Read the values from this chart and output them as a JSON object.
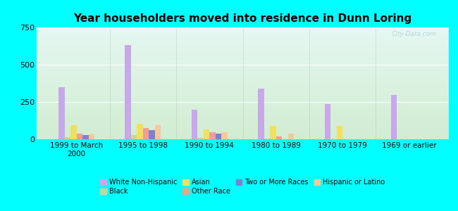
{
  "title": "Year householders moved into residence in Dunn Loring",
  "categories": [
    "1999 to March\n2000",
    "1995 to 1998",
    "1990 to 1994",
    "1980 to 1989",
    "1970 to 1979",
    "1969 or earlier"
  ],
  "series_order": [
    "White Non-Hispanic",
    "Black",
    "Asian",
    "Other Race",
    "Two or More Races",
    "Hispanic or Latino"
  ],
  "series": {
    "White Non-Hispanic": [
      350,
      630,
      200,
      340,
      235,
      295
    ],
    "Black": [
      15,
      30,
      8,
      5,
      0,
      0
    ],
    "Asian": [
      95,
      105,
      65,
      90,
      90,
      0
    ],
    "Other Race": [
      40,
      75,
      45,
      18,
      0,
      0
    ],
    "Two or More Races": [
      28,
      62,
      38,
      0,
      0,
      0
    ],
    "Hispanic or Latino": [
      35,
      95,
      45,
      40,
      0,
      0
    ]
  },
  "colors": {
    "White Non-Hispanic": "#c8a8e8",
    "Black": "#c8d4a0",
    "Asian": "#f0e060",
    "Other Race": "#f0a090",
    "Two or More Races": "#8080cc",
    "Hispanic or Latino": "#f8c898"
  },
  "legend_row1": [
    "White Non-Hispanic",
    "Black",
    "Asian",
    "Other Race"
  ],
  "legend_row2": [
    "Two or More Races",
    "Hispanic or Latino"
  ],
  "ylim": [
    0,
    750
  ],
  "yticks": [
    0,
    250,
    500,
    750
  ],
  "background_color": "#00ffff",
  "plot_bg": "#d8edd8",
  "watermark": "City-Data.com",
  "bar_width": 0.09,
  "title_fontsize": 11
}
